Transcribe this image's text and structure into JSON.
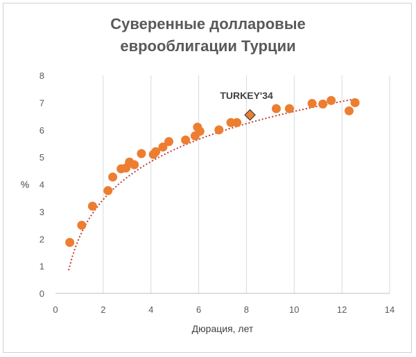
{
  "chart_data": {
    "type": "scatter",
    "title_lines": [
      "Суверенные долларовые",
      "еврооблигации Турции"
    ],
    "xlabel": "Дюрация, лет",
    "ylabel": "%",
    "xlim": [
      0,
      14
    ],
    "ylim": [
      0,
      8
    ],
    "x_ticks": [
      0,
      2,
      4,
      6,
      8,
      10,
      12,
      14
    ],
    "y_ticks": [
      0,
      1,
      2,
      3,
      4,
      5,
      6,
      7,
      8
    ],
    "grid": "vertical",
    "colors": {
      "points": "#ed7d31",
      "trend": "#c0392b",
      "highlight": "#ed7d31",
      "highlight_edge": "#404040",
      "grid": "#d9d9d9"
    },
    "series": [
      {
        "points": [
          [
            0.6,
            1.87
          ],
          [
            1.1,
            2.5
          ],
          [
            1.55,
            3.2
          ],
          [
            2.2,
            3.77
          ],
          [
            2.4,
            4.27
          ],
          [
            2.75,
            4.57
          ],
          [
            2.95,
            4.6
          ],
          [
            3.1,
            4.82
          ],
          [
            3.3,
            4.72
          ],
          [
            3.6,
            5.13
          ],
          [
            4.1,
            5.1
          ],
          [
            4.2,
            5.2
          ],
          [
            4.5,
            5.37
          ],
          [
            4.75,
            5.57
          ],
          [
            5.45,
            5.63
          ],
          [
            5.85,
            5.78
          ],
          [
            5.95,
            6.1
          ],
          [
            6.05,
            5.95
          ],
          [
            6.85,
            6.0
          ],
          [
            7.35,
            6.27
          ],
          [
            7.6,
            6.27
          ],
          [
            9.25,
            6.78
          ],
          [
            9.8,
            6.78
          ],
          [
            10.75,
            6.97
          ],
          [
            11.2,
            6.95
          ],
          [
            11.55,
            7.08
          ],
          [
            12.3,
            6.7
          ],
          [
            12.55,
            7.0
          ]
        ]
      }
    ],
    "highlight": {
      "label": "TURKEY'34",
      "x": 8.15,
      "y": 6.55
    },
    "trendline": {
      "type": "logarithmic",
      "a": 2.05,
      "b": 2.01,
      "x_range": [
        0.55,
        12.6
      ]
    }
  }
}
